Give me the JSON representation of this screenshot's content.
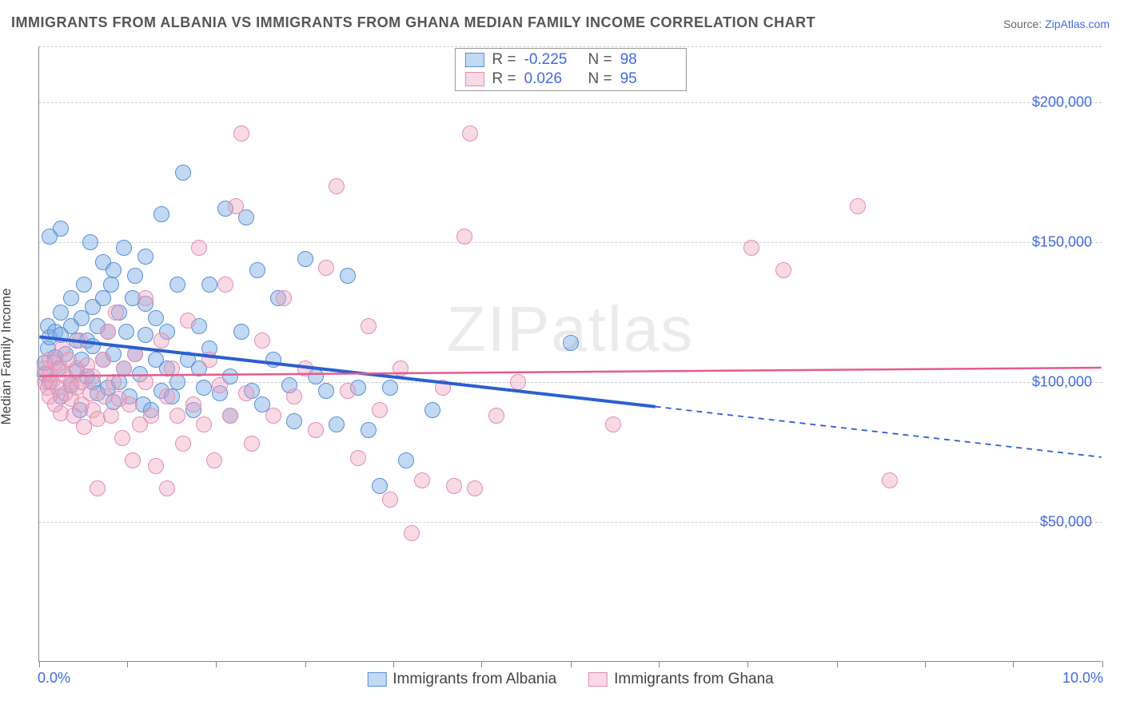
{
  "title": "IMMIGRANTS FROM ALBANIA VS IMMIGRANTS FROM GHANA MEDIAN FAMILY INCOME CORRELATION CHART",
  "source_label": "Source:",
  "source_name": "ZipAtlas.com",
  "watermark": "ZIPatlas",
  "chart": {
    "type": "scatter",
    "xlim": [
      0,
      10
    ],
    "ylim": [
      0,
      220000
    ],
    "x_ticks_pct": [
      0,
      8.3,
      16.6,
      25,
      33.3,
      41.6,
      50,
      58.3,
      66.6,
      75,
      83.3,
      91.6,
      100
    ],
    "y_gridlines": [
      50000,
      100000,
      150000,
      200000,
      220000
    ],
    "y_tick_labels": {
      "50000": "$50,000",
      "100000": "$100,000",
      "150000": "$150,000",
      "200000": "$200,000"
    },
    "x_start_label": "0.0%",
    "x_end_label": "10.0%",
    "ylabel": "Median Family Income",
    "background_color": "#ffffff",
    "grid_color": "#cccccc",
    "axis_text_color": "#4169e1",
    "point_radius": 10,
    "series": [
      {
        "name": "Immigrants from Albania",
        "fill": "rgba(120,170,230,0.45)",
        "stroke": "#5a8fd6",
        "trend_color": "#2a5fd0",
        "R": "-0.225",
        "N": "98",
        "trend": {
          "y_at_x0": 116000,
          "y_at_x10": 73000,
          "solid_until_x": 5.8
        },
        "points": [
          [
            0.05,
            103000
          ],
          [
            0.05,
            107000
          ],
          [
            0.08,
            112000
          ],
          [
            0.08,
            120000
          ],
          [
            0.1,
            100000
          ],
          [
            0.1,
            116000
          ],
          [
            0.1,
            152000
          ],
          [
            0.15,
            109000
          ],
          [
            0.15,
            118000
          ],
          [
            0.18,
            105000
          ],
          [
            0.2,
            95000
          ],
          [
            0.2,
            117000
          ],
          [
            0.2,
            125000
          ],
          [
            0.2,
            155000
          ],
          [
            0.25,
            110000
          ],
          [
            0.3,
            99000
          ],
          [
            0.3,
            120000
          ],
          [
            0.3,
            130000
          ],
          [
            0.35,
            104000
          ],
          [
            0.35,
            115000
          ],
          [
            0.38,
            90000
          ],
          [
            0.4,
            108000
          ],
          [
            0.4,
            123000
          ],
          [
            0.42,
            135000
          ],
          [
            0.45,
            102000
          ],
          [
            0.45,
            115000
          ],
          [
            0.48,
            150000
          ],
          [
            0.5,
            100000
          ],
          [
            0.5,
            113000
          ],
          [
            0.5,
            127000
          ],
          [
            0.55,
            96000
          ],
          [
            0.55,
            120000
          ],
          [
            0.6,
            108000
          ],
          [
            0.6,
            130000
          ],
          [
            0.6,
            143000
          ],
          [
            0.65,
            98000
          ],
          [
            0.65,
            118000
          ],
          [
            0.68,
            135000
          ],
          [
            0.7,
            93000
          ],
          [
            0.7,
            110000
          ],
          [
            0.7,
            140000
          ],
          [
            0.75,
            100000
          ],
          [
            0.75,
            125000
          ],
          [
            0.8,
            105000
          ],
          [
            0.8,
            148000
          ],
          [
            0.82,
            118000
          ],
          [
            0.85,
            95000
          ],
          [
            0.88,
            130000
          ],
          [
            0.9,
            110000
          ],
          [
            0.9,
            138000
          ],
          [
            0.95,
            103000
          ],
          [
            0.98,
            92000
          ],
          [
            1.0,
            117000
          ],
          [
            1.0,
            128000
          ],
          [
            1.0,
            145000
          ],
          [
            1.05,
            90000
          ],
          [
            1.1,
            108000
          ],
          [
            1.1,
            123000
          ],
          [
            1.15,
            97000
          ],
          [
            1.15,
            160000
          ],
          [
            1.2,
            105000
          ],
          [
            1.2,
            118000
          ],
          [
            1.25,
            95000
          ],
          [
            1.3,
            135000
          ],
          [
            1.3,
            100000
          ],
          [
            1.35,
            175000
          ],
          [
            1.4,
            108000
          ],
          [
            1.45,
            90000
          ],
          [
            1.5,
            120000
          ],
          [
            1.5,
            105000
          ],
          [
            1.55,
            98000
          ],
          [
            1.6,
            135000
          ],
          [
            1.6,
            112000
          ],
          [
            1.7,
            96000
          ],
          [
            1.75,
            162000
          ],
          [
            1.8,
            102000
          ],
          [
            1.8,
            88000
          ],
          [
            1.9,
            118000
          ],
          [
            1.95,
            159000
          ],
          [
            2.0,
            97000
          ],
          [
            2.05,
            140000
          ],
          [
            2.1,
            92000
          ],
          [
            2.2,
            108000
          ],
          [
            2.25,
            130000
          ],
          [
            2.35,
            99000
          ],
          [
            2.4,
            86000
          ],
          [
            2.5,
            144000
          ],
          [
            2.6,
            102000
          ],
          [
            2.7,
            97000
          ],
          [
            2.8,
            85000
          ],
          [
            2.9,
            138000
          ],
          [
            3.0,
            98000
          ],
          [
            3.1,
            83000
          ],
          [
            3.2,
            63000
          ],
          [
            3.3,
            98000
          ],
          [
            3.45,
            72000
          ],
          [
            3.7,
            90000
          ],
          [
            5.0,
            114000
          ]
        ]
      },
      {
        "name": "Immigrants from Ghana",
        "fill": "rgba(240,160,190,0.40)",
        "stroke": "#e090b0",
        "trend_color": "#e75a8c",
        "R": "0.026",
        "N": "95",
        "trend": {
          "y_at_x0": 102000,
          "y_at_x10": 105000,
          "solid_until_x": 10
        },
        "points": [
          [
            0.05,
            100000
          ],
          [
            0.05,
            105000
          ],
          [
            0.08,
            98000
          ],
          [
            0.1,
            95000
          ],
          [
            0.1,
            103000
          ],
          [
            0.1,
            108000
          ],
          [
            0.12,
            100000
          ],
          [
            0.15,
            92000
          ],
          [
            0.15,
            107000
          ],
          [
            0.18,
            98000
          ],
          [
            0.2,
            89000
          ],
          [
            0.2,
            105000
          ],
          [
            0.22,
            112000
          ],
          [
            0.25,
            96000
          ],
          [
            0.25,
            102000
          ],
          [
            0.28,
            108000
          ],
          [
            0.3,
            94000
          ],
          [
            0.3,
            100000
          ],
          [
            0.32,
            88000
          ],
          [
            0.35,
            105000
          ],
          [
            0.35,
            98000
          ],
          [
            0.38,
            115000
          ],
          [
            0.4,
            92000
          ],
          [
            0.4,
            100000
          ],
          [
            0.42,
            84000
          ],
          [
            0.45,
            106000
          ],
          [
            0.48,
            96000
          ],
          [
            0.5,
            90000
          ],
          [
            0.5,
            102000
          ],
          [
            0.55,
            87000
          ],
          [
            0.55,
            62000
          ],
          [
            0.6,
            108000
          ],
          [
            0.62,
            95000
          ],
          [
            0.65,
            118000
          ],
          [
            0.68,
            88000
          ],
          [
            0.7,
            100000
          ],
          [
            0.72,
            125000
          ],
          [
            0.75,
            94000
          ],
          [
            0.78,
            80000
          ],
          [
            0.8,
            105000
          ],
          [
            0.85,
            92000
          ],
          [
            0.88,
            72000
          ],
          [
            0.9,
            110000
          ],
          [
            0.95,
            85000
          ],
          [
            1.0,
            100000
          ],
          [
            1.0,
            130000
          ],
          [
            1.05,
            88000
          ],
          [
            1.1,
            70000
          ],
          [
            1.15,
            115000
          ],
          [
            1.2,
            95000
          ],
          [
            1.2,
            62000
          ],
          [
            1.25,
            105000
          ],
          [
            1.3,
            88000
          ],
          [
            1.35,
            78000
          ],
          [
            1.4,
            122000
          ],
          [
            1.45,
            92000
          ],
          [
            1.5,
            148000
          ],
          [
            1.55,
            85000
          ],
          [
            1.6,
            108000
          ],
          [
            1.65,
            72000
          ],
          [
            1.7,
            99000
          ],
          [
            1.75,
            135000
          ],
          [
            1.8,
            88000
          ],
          [
            1.85,
            163000
          ],
          [
            1.9,
            189000
          ],
          [
            1.95,
            96000
          ],
          [
            2.0,
            78000
          ],
          [
            2.1,
            115000
          ],
          [
            2.2,
            88000
          ],
          [
            2.3,
            130000
          ],
          [
            2.4,
            95000
          ],
          [
            2.5,
            105000
          ],
          [
            2.6,
            83000
          ],
          [
            2.7,
            141000
          ],
          [
            2.8,
            170000
          ],
          [
            2.9,
            97000
          ],
          [
            3.0,
            73000
          ],
          [
            3.1,
            120000
          ],
          [
            3.2,
            90000
          ],
          [
            3.3,
            58000
          ],
          [
            3.4,
            105000
          ],
          [
            3.5,
            46000
          ],
          [
            3.6,
            65000
          ],
          [
            3.8,
            98000
          ],
          [
            3.9,
            63000
          ],
          [
            4.0,
            152000
          ],
          [
            4.05,
            189000
          ],
          [
            4.1,
            62000
          ],
          [
            4.3,
            88000
          ],
          [
            4.5,
            100000
          ],
          [
            5.4,
            85000
          ],
          [
            6.7,
            148000
          ],
          [
            7.0,
            140000
          ],
          [
            7.7,
            163000
          ],
          [
            8.0,
            65000
          ]
        ]
      }
    ]
  },
  "legend_bottom": [
    {
      "label": "Immigrants from Albania",
      "fill": "rgba(120,170,230,0.45)",
      "stroke": "#5a8fd6"
    },
    {
      "label": "Immigrants from Ghana",
      "fill": "rgba(240,160,190,0.40)",
      "stroke": "#e090b0"
    }
  ]
}
